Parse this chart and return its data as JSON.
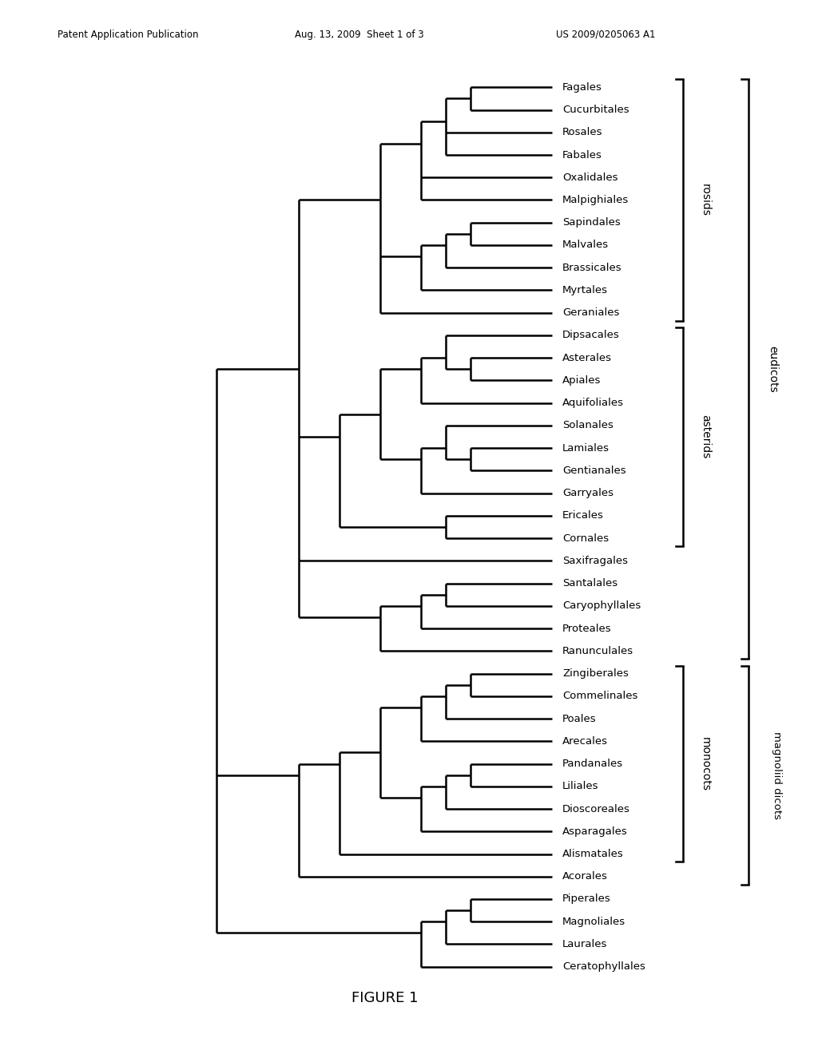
{
  "title": "FIGURE 1",
  "header_left": "Patent Application Publication",
  "header_mid": "Aug. 13, 2009  Sheet 1 of 3",
  "header_right": "US 2009/0205063 A1",
  "leaves": [
    "Fagales",
    "Cucurbitales",
    "Rosales",
    "Fabales",
    "Oxalidales",
    "Malpighiales",
    "Sapindales",
    "Malvales",
    "Brassicales",
    "Myrtales",
    "Geraniales",
    "Dipsacales",
    "Asterales",
    "Apiales",
    "Aquifoliales",
    "Solanales",
    "Lamiales",
    "Gentianales",
    "Garryales",
    "Ericales",
    "Cornales",
    "Saxifragales",
    "Santalales",
    "Caryophyllales",
    "Proteales",
    "Ranunculales",
    "Zingiberales",
    "Commelinales",
    "Poales",
    "Arecales",
    "Pandanales",
    "Liliales",
    "Dioscoreales",
    "Asparagales",
    "Alismatales",
    "Acorales",
    "Piperales",
    "Magnoliales",
    "Laurales",
    "Ceratophyllales"
  ],
  "bg_color": "#ffffff",
  "line_color": "#000000",
  "text_color": "#000000",
  "lw": 1.8
}
